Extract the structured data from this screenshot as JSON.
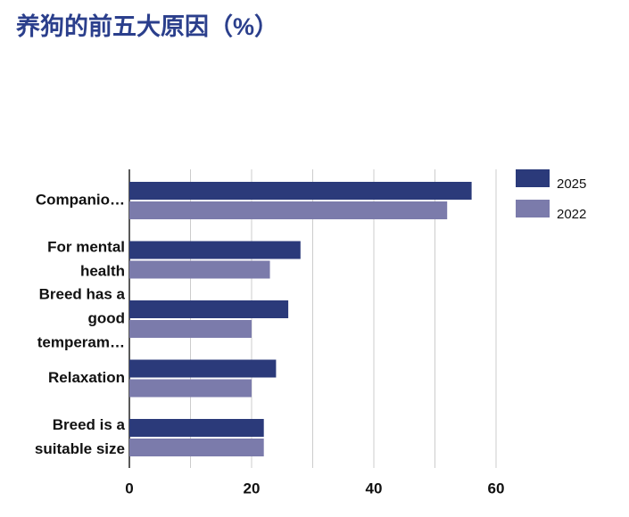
{
  "chart_data": {
    "type": "hbar",
    "title": "养狗的前五大原因（%）",
    "categories": [
      [
        "Companio…"
      ],
      [
        "For mental",
        "health"
      ],
      [
        "Breed has a",
        "good",
        "temperam…"
      ],
      [
        "Relaxation"
      ],
      [
        "Breed is a",
        "suitable size"
      ]
    ],
    "series": [
      {
        "name": "2025",
        "color": "#2b3a7a",
        "values": [
          56,
          28,
          26,
          24,
          22
        ]
      },
      {
        "name": "2022",
        "color": "#7b7bab",
        "values": [
          52,
          23,
          20,
          20,
          22
        ]
      }
    ],
    "xlim": [
      0,
      60
    ],
    "xticks": [
      0,
      20,
      40,
      60
    ],
    "xminorticks": [
      10,
      30,
      50
    ],
    "grid": true,
    "legend": "top-right"
  }
}
